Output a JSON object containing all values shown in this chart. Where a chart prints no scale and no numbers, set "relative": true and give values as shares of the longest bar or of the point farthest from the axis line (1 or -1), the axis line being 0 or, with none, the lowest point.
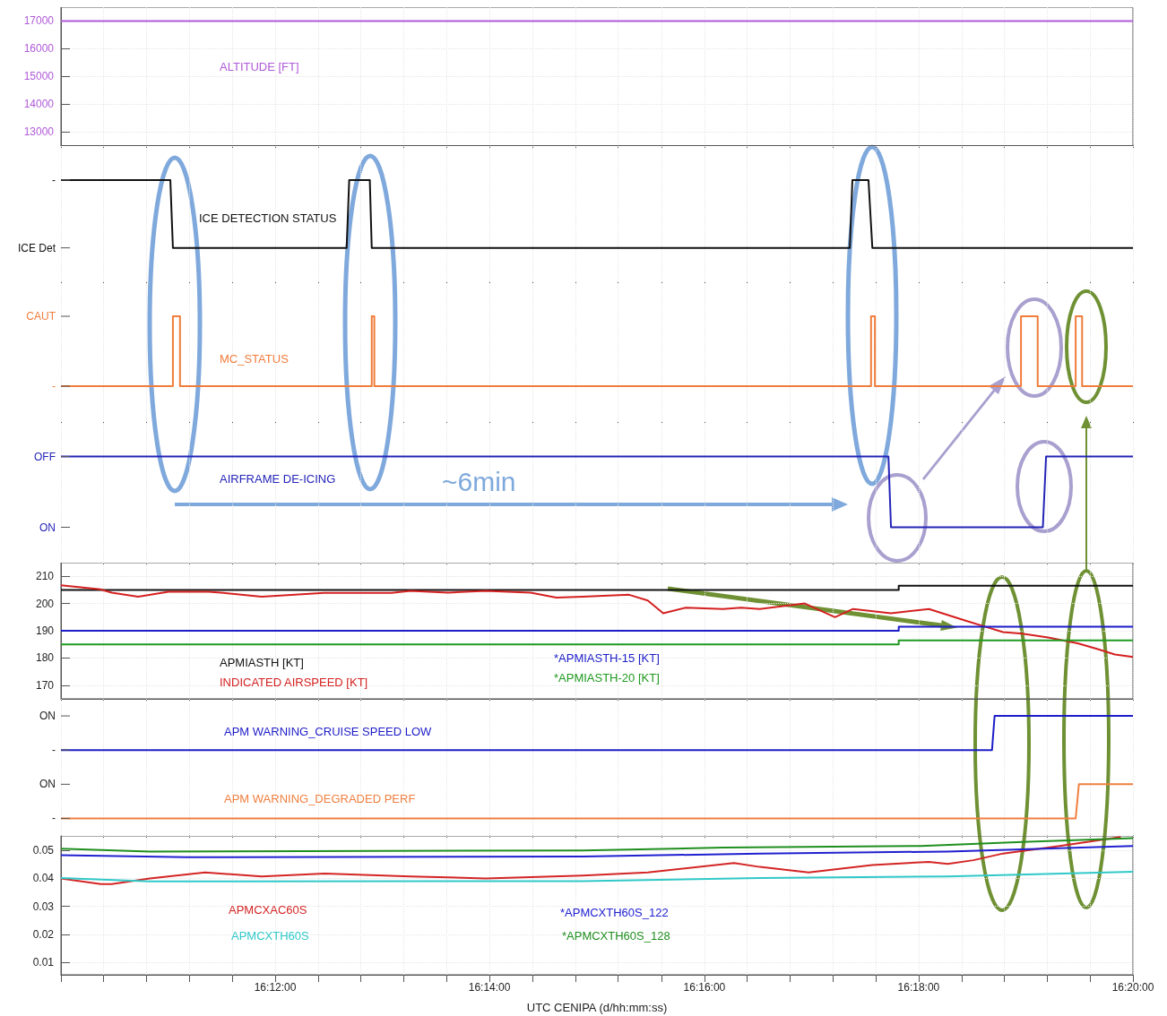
{
  "chart_data": [
    {
      "type": "line",
      "grid": true,
      "tick_labels": "y",
      "xlim": [
        16.1667,
        16.3333
      ],
      "xticks": [
        {
          "value": 16.1667,
          "label": null
        },
        {
          "value": 16.1733,
          "label": null
        },
        {
          "value": 16.18,
          "label": null
        },
        {
          "value": 16.1867,
          "label": null
        },
        {
          "value": 16.1933,
          "label": null
        },
        {
          "value": 16.2,
          "label": null
        },
        {
          "value": 16.2067,
          "label": null
        },
        {
          "value": 16.2133,
          "label": null
        },
        {
          "value": 16.22,
          "label": null
        },
        {
          "value": 16.2267,
          "label": null
        },
        {
          "value": 16.2333,
          "label": null
        },
        {
          "value": 16.24,
          "label": null
        },
        {
          "value": 16.2467,
          "label": null
        },
        {
          "value": 16.2533,
          "label": null
        },
        {
          "value": 16.26,
          "label": null
        },
        {
          "value": 16.2667,
          "label": null
        },
        {
          "value": 16.2733,
          "label": null
        },
        {
          "value": 16.28,
          "label": null
        },
        {
          "value": 16.2867,
          "label": null
        },
        {
          "value": 16.2933,
          "label": null
        },
        {
          "value": 16.3,
          "label": null
        },
        {
          "value": 16.3067,
          "label": null
        },
        {
          "value": 16.3133,
          "label": null
        },
        {
          "value": 16.32,
          "label": null
        },
        {
          "value": 16.3267,
          "label": null
        },
        {
          "value": 16.3333,
          "label": null
        }
      ],
      "ylim": [
        12500,
        17500
      ],
      "yticks": [
        13000,
        14000,
        15000,
        16000,
        17000
      ],
      "series": [
        {
          "name": "ALTITUDE [FT]",
          "color": "#b05ad8",
          "x": [
            16.1667,
            16.3333
          ],
          "values": [
            17000,
            17000
          ]
        }
      ]
    },
    {
      "type": "line",
      "grid": "x",
      "relative": true,
      "tick_labels": "y",
      "xlim": [
        16.1667,
        16.3333
      ],
      "xticks": [
        {
          "value": 16.1667,
          "label": null
        },
        {
          "value": 16.1733,
          "label": null
        },
        {
          "value": 16.18,
          "label": null
        },
        {
          "value": 16.1867,
          "label": null
        },
        {
          "value": 16.1933,
          "label": null
        },
        {
          "value": 16.2,
          "label": null
        },
        {
          "value": 16.2067,
          "label": null
        },
        {
          "value": 16.2133,
          "label": null
        },
        {
          "value": 16.22,
          "label": null
        },
        {
          "value": 16.2267,
          "label": null
        },
        {
          "value": 16.2333,
          "label": null
        },
        {
          "value": 16.24,
          "label": null
        },
        {
          "value": 16.2467,
          "label": null
        },
        {
          "value": 16.2533,
          "label": null
        },
        {
          "value": 16.26,
          "label": null
        },
        {
          "value": 16.2667,
          "label": null
        },
        {
          "value": 16.2733,
          "label": null
        },
        {
          "value": 16.28,
          "label": null
        },
        {
          "value": 16.2867,
          "label": null
        },
        {
          "value": 16.2933,
          "label": null
        },
        {
          "value": 16.3,
          "label": null
        },
        {
          "value": 16.3067,
          "label": null
        },
        {
          "value": 16.3133,
          "label": null
        },
        {
          "value": 16.32,
          "label": null
        },
        {
          "value": 16.3267,
          "label": null
        },
        {
          "value": 16.3333,
          "label": null
        }
      ],
      "annotations": [
        "-",
        "ICE Det"
      ],
      "series": [
        {
          "name": "ICE DETECTION STATUS",
          "color": "#111111",
          "x": [
            16.1667,
            16.1837,
            16.1841,
            16.2111,
            16.2115,
            16.2147,
            16.215,
            16.2893,
            16.2897,
            16.2922,
            16.2928,
            16.3333
          ],
          "values": [
            1,
            1,
            0,
            0,
            1,
            1,
            0,
            0,
            1,
            1,
            0,
            0
          ]
        }
      ]
    },
    {
      "type": "line",
      "grid": "x",
      "relative": true,
      "tick_labels": "y",
      "xlim": [
        16.1667,
        16.3333
      ],
      "xticks": [
        {
          "value": 16.1667,
          "label": null
        },
        {
          "value": 16.1733,
          "label": null
        },
        {
          "value": 16.18,
          "label": null
        },
        {
          "value": 16.1867,
          "label": null
        },
        {
          "value": 16.1933,
          "label": null
        },
        {
          "value": 16.2,
          "label": null
        },
        {
          "value": 16.2067,
          "label": null
        },
        {
          "value": 16.2133,
          "label": null
        },
        {
          "value": 16.22,
          "label": null
        },
        {
          "value": 16.2267,
          "label": null
        },
        {
          "value": 16.2333,
          "label": null
        },
        {
          "value": 16.24,
          "label": null
        },
        {
          "value": 16.2467,
          "label": null
        },
        {
          "value": 16.2533,
          "label": null
        },
        {
          "value": 16.26,
          "label": null
        },
        {
          "value": 16.2667,
          "label": null
        },
        {
          "value": 16.2733,
          "label": null
        },
        {
          "value": 16.28,
          "label": null
        },
        {
          "value": 16.2867,
          "label": null
        },
        {
          "value": 16.2933,
          "label": null
        },
        {
          "value": 16.3,
          "label": null
        },
        {
          "value": 16.3067,
          "label": null
        },
        {
          "value": 16.3133,
          "label": null
        },
        {
          "value": 16.32,
          "label": null
        },
        {
          "value": 16.3267,
          "label": null
        },
        {
          "value": 16.3333,
          "label": null
        }
      ],
      "annotations": [
        "CAUT",
        "-"
      ],
      "series": [
        {
          "name": "MC_STATUS",
          "color": "#f07d3c",
          "x": [
            16.1667,
            16.1841,
            16.1841,
            16.1852,
            16.1852,
            16.215,
            16.215,
            16.2154,
            16.2154,
            16.2926,
            16.2926,
            16.2932,
            16.2932,
            16.3159,
            16.3159,
            16.3185,
            16.3185,
            16.3244,
            16.3244,
            16.3254,
            16.3254,
            16.3333
          ],
          "values": [
            0,
            0,
            1,
            1,
            0,
            0,
            1,
            1,
            0,
            0,
            1,
            1,
            0,
            0,
            1,
            1,
            0,
            0,
            1,
            1,
            0,
            0
          ]
        }
      ]
    },
    {
      "type": "line",
      "grid": "x",
      "relative": true,
      "tick_labels": "y",
      "xlim": [
        16.1667,
        16.3333
      ],
      "xticks": [
        {
          "value": 16.1667,
          "label": null
        },
        {
          "value": 16.1733,
          "label": null
        },
        {
          "value": 16.18,
          "label": null
        },
        {
          "value": 16.1867,
          "label": null
        },
        {
          "value": 16.1933,
          "label": null
        },
        {
          "value": 16.2,
          "label": null
        },
        {
          "value": 16.2067,
          "label": null
        },
        {
          "value": 16.2133,
          "label": null
        },
        {
          "value": 16.22,
          "label": null
        },
        {
          "value": 16.2267,
          "label": null
        },
        {
          "value": 16.2333,
          "label": null
        },
        {
          "value": 16.24,
          "label": null
        },
        {
          "value": 16.2467,
          "label": null
        },
        {
          "value": 16.2533,
          "label": null
        },
        {
          "value": 16.26,
          "label": null
        },
        {
          "value": 16.2667,
          "label": null
        },
        {
          "value": 16.2733,
          "label": null
        },
        {
          "value": 16.28,
          "label": null
        },
        {
          "value": 16.2867,
          "label": null
        },
        {
          "value": 16.2933,
          "label": null
        },
        {
          "value": 16.3,
          "label": null
        },
        {
          "value": 16.3067,
          "label": null
        },
        {
          "value": 16.3133,
          "label": null
        },
        {
          "value": 16.32,
          "label": null
        },
        {
          "value": 16.3267,
          "label": null
        },
        {
          "value": 16.3333,
          "label": null
        }
      ],
      "annotations": [
        "~6min",
        "OFF",
        "ON"
      ],
      "series": [
        {
          "name": "AIRFRAME DE-ICING",
          "color": "#2424b8",
          "x": [
            16.1667,
            16.2953,
            16.2957,
            16.3193,
            16.3198,
            16.3333
          ],
          "values": [
            1,
            1,
            0,
            0,
            1,
            1
          ]
        }
      ]
    },
    {
      "type": "line",
      "grid": true,
      "tick_labels": "y",
      "xlim": [
        16.1667,
        16.3333
      ],
      "xticks": [
        {
          "value": 16.1667,
          "label": null
        },
        {
          "value": 16.1733,
          "label": null
        },
        {
          "value": 16.18,
          "label": null
        },
        {
          "value": 16.1867,
          "label": null
        },
        {
          "value": 16.1933,
          "label": null
        },
        {
          "value": 16.2,
          "label": null
        },
        {
          "value": 16.2067,
          "label": null
        },
        {
          "value": 16.2133,
          "label": null
        },
        {
          "value": 16.22,
          "label": null
        },
        {
          "value": 16.2267,
          "label": null
        },
        {
          "value": 16.2333,
          "label": null
        },
        {
          "value": 16.24,
          "label": null
        },
        {
          "value": 16.2467,
          "label": null
        },
        {
          "value": 16.2533,
          "label": null
        },
        {
          "value": 16.26,
          "label": null
        },
        {
          "value": 16.2667,
          "label": null
        },
        {
          "value": 16.2733,
          "label": null
        },
        {
          "value": 16.28,
          "label": null
        },
        {
          "value": 16.2867,
          "label": null
        },
        {
          "value": 16.2933,
          "label": null
        },
        {
          "value": 16.3,
          "label": null
        },
        {
          "value": 16.3067,
          "label": null
        },
        {
          "value": 16.3133,
          "label": null
        },
        {
          "value": 16.32,
          "label": null
        },
        {
          "value": 16.3267,
          "label": null
        },
        {
          "value": 16.3333,
          "label": null
        }
      ],
      "ylim": [
        165,
        215
      ],
      "yticks": [
        170,
        180,
        190,
        200,
        210
      ],
      "series": [
        {
          "name": "APMIASTH [KT]",
          "color": "#111111",
          "x": [
            16.1667,
            16.2969,
            16.2969,
            16.3333
          ],
          "values": [
            205,
            205,
            206.5,
            206.5
          ]
        },
        {
          "name": "INDICATED AIRSPEED [KT]",
          "color": "#d42020",
          "x": [
            16.1667,
            16.1728,
            16.1746,
            16.1787,
            16.1834,
            16.1897,
            16.192,
            16.1979,
            16.2076,
            16.2181,
            16.221,
            16.2269,
            16.2327,
            16.2397,
            16.2437,
            16.2478,
            16.255,
            16.2579,
            16.2603,
            16.2638,
            16.2696,
            16.2724,
            16.2753,
            16.2823,
            16.287,
            16.2898,
            16.2957,
            16.3016,
            16.3073,
            16.3102,
            16.3131,
            16.3161,
            16.3201,
            16.3247,
            16.3276,
            16.3305,
            16.3333
          ],
          "values": [
            206.7,
            205.2,
            204,
            202.5,
            204.3,
            204.3,
            203.9,
            202.5,
            203.9,
            203.9,
            204.6,
            204,
            204.6,
            204,
            202.2,
            202.5,
            203.2,
            201.1,
            196.4,
            198.5,
            198,
            198.5,
            198,
            200,
            195,
            198,
            196.4,
            198,
            193.7,
            191.6,
            189.5,
            188.9,
            187.5,
            185.4,
            183.4,
            181.3,
            180.4
          ]
        },
        {
          "name": "*APMIASTH-15 [KT]",
          "color": "#1c1cc8",
          "x": [
            16.1667,
            16.2969,
            16.2969,
            16.3333
          ],
          "values": [
            190,
            190,
            191.5,
            191.5
          ]
        },
        {
          "name": "*APMIASTH-20 [KT]",
          "color": "#1f9a1f",
          "x": [
            16.1667,
            16.2969,
            16.2969,
            16.3333
          ],
          "values": [
            185,
            185,
            186.5,
            186.5
          ]
        }
      ]
    },
    {
      "type": "line",
      "grid": "x",
      "relative": true,
      "tick_labels": "y",
      "xlim": [
        16.1667,
        16.3333
      ],
      "xticks": [
        {
          "value": 16.1667,
          "label": null
        },
        {
          "value": 16.1733,
          "label": null
        },
        {
          "value": 16.18,
          "label": null
        },
        {
          "value": 16.1867,
          "label": null
        },
        {
          "value": 16.1933,
          "label": null
        },
        {
          "value": 16.2,
          "label": null
        },
        {
          "value": 16.2067,
          "label": null
        },
        {
          "value": 16.2133,
          "label": null
        },
        {
          "value": 16.22,
          "label": null
        },
        {
          "value": 16.2267,
          "label": null
        },
        {
          "value": 16.2333,
          "label": null
        },
        {
          "value": 16.24,
          "label": null
        },
        {
          "value": 16.2467,
          "label": null
        },
        {
          "value": 16.2533,
          "label": null
        },
        {
          "value": 16.26,
          "label": null
        },
        {
          "value": 16.2667,
          "label": null
        },
        {
          "value": 16.2733,
          "label": null
        },
        {
          "value": 16.28,
          "label": null
        },
        {
          "value": 16.2867,
          "label": null
        },
        {
          "value": 16.2933,
          "label": null
        },
        {
          "value": 16.3,
          "label": null
        },
        {
          "value": 16.3067,
          "label": null
        },
        {
          "value": 16.3133,
          "label": null
        },
        {
          "value": 16.32,
          "label": null
        },
        {
          "value": 16.3267,
          "label": null
        },
        {
          "value": 16.3333,
          "label": null
        }
      ],
      "annotations": [
        "ON",
        "-",
        "ON",
        "-"
      ],
      "series": [
        {
          "name": "APM WARNING_CRUISE SPEED LOW",
          "color": "#1c1cc8",
          "x": [
            16.1667,
            16.3114,
            16.3118,
            16.3333
          ],
          "values": [
            0.667,
            0.667,
            1,
            1
          ]
        },
        {
          "name": "APM WARNING_DEGRADED PERF",
          "color": "#f08040",
          "x": [
            16.1667,
            16.3244,
            16.3249,
            16.3333
          ],
          "values": [
            0,
            0,
            0.333,
            0.333
          ]
        }
      ]
    },
    {
      "type": "line",
      "grid": true,
      "xlabel": "UTC CENIPA (d/hh:mm:ss)",
      "xlim": [
        16.1667,
        16.3333
      ],
      "xticks": [
        {
          "value": 16.1667,
          "label": null
        },
        {
          "value": 16.1733,
          "label": null
        },
        {
          "value": 16.18,
          "label": null
        },
        {
          "value": 16.1867,
          "label": null
        },
        {
          "value": 16.1933,
          "label": null
        },
        {
          "value": 16.2,
          "label": "16:12:00"
        },
        {
          "value": 16.2067,
          "label": null
        },
        {
          "value": 16.2133,
          "label": null
        },
        {
          "value": 16.22,
          "label": null
        },
        {
          "value": 16.2267,
          "label": null
        },
        {
          "value": 16.2333,
          "label": "16:14:00"
        },
        {
          "value": 16.24,
          "label": null
        },
        {
          "value": 16.2467,
          "label": null
        },
        {
          "value": 16.2533,
          "label": null
        },
        {
          "value": 16.26,
          "label": null
        },
        {
          "value": 16.2667,
          "label": "16:16:00"
        },
        {
          "value": 16.2733,
          "label": null
        },
        {
          "value": 16.28,
          "label": null
        },
        {
          "value": 16.2867,
          "label": null
        },
        {
          "value": 16.2933,
          "label": null
        },
        {
          "value": 16.3,
          "label": "16:18:00"
        },
        {
          "value": 16.3067,
          "label": null
        },
        {
          "value": 16.3133,
          "label": null
        },
        {
          "value": 16.32,
          "label": null
        },
        {
          "value": 16.3267,
          "label": null
        },
        {
          "value": 16.3333,
          "label": "16:20:00"
        }
      ],
      "ylim": [
        0.0055,
        0.0552
      ],
      "yticks": [
        0.01,
        0.02,
        0.03,
        0.04,
        0.05
      ],
      "series": [
        {
          "name": "APMCXAC60S",
          "color": "#d42525",
          "x": [
            16.1667,
            16.1729,
            16.1746,
            16.1805,
            16.1891,
            16.1979,
            16.2077,
            16.221,
            16.2327,
            16.2478,
            16.2579,
            16.2713,
            16.2753,
            16.2829,
            16.2928,
            16.3016,
            16.3045,
            16.3085,
            16.3131,
            16.3219,
            16.3314
          ],
          "values": [
            0.04,
            0.038,
            0.038,
            0.04,
            0.0421,
            0.0407,
            0.0417,
            0.0407,
            0.04,
            0.041,
            0.0421,
            0.0455,
            0.0441,
            0.0421,
            0.0448,
            0.0459,
            0.0452,
            0.0465,
            0.0489,
            0.0516,
            0.0548
          ]
        },
        {
          "name": "APMCXTH60S",
          "color": "#30c8c8",
          "x": [
            16.1667,
            16.1805,
            16.2478,
            16.2753,
            16.3045,
            16.3333
          ],
          "values": [
            0.0401,
            0.0389,
            0.039,
            0.0401,
            0.0407,
            0.0424
          ]
        },
        {
          "name": "*APMCXTH60S_122",
          "color": "#2020d0",
          "x": [
            16.1667,
            16.1862,
            16.2478,
            16.2753,
            16.3045,
            16.3333
          ],
          "values": [
            0.0483,
            0.0476,
            0.0478,
            0.0489,
            0.0496,
            0.0516
          ]
        },
        {
          "name": "*APMCXTH60S_128",
          "color": "#1f8f1f",
          "x": [
            16.1667,
            16.1805,
            16.2478,
            16.2696,
            16.3003,
            16.3161,
            16.3333
          ],
          "values": [
            0.0506,
            0.0496,
            0.05,
            0.051,
            0.0516,
            0.053,
            0.0544
          ]
        }
      ]
    }
  ]
}
